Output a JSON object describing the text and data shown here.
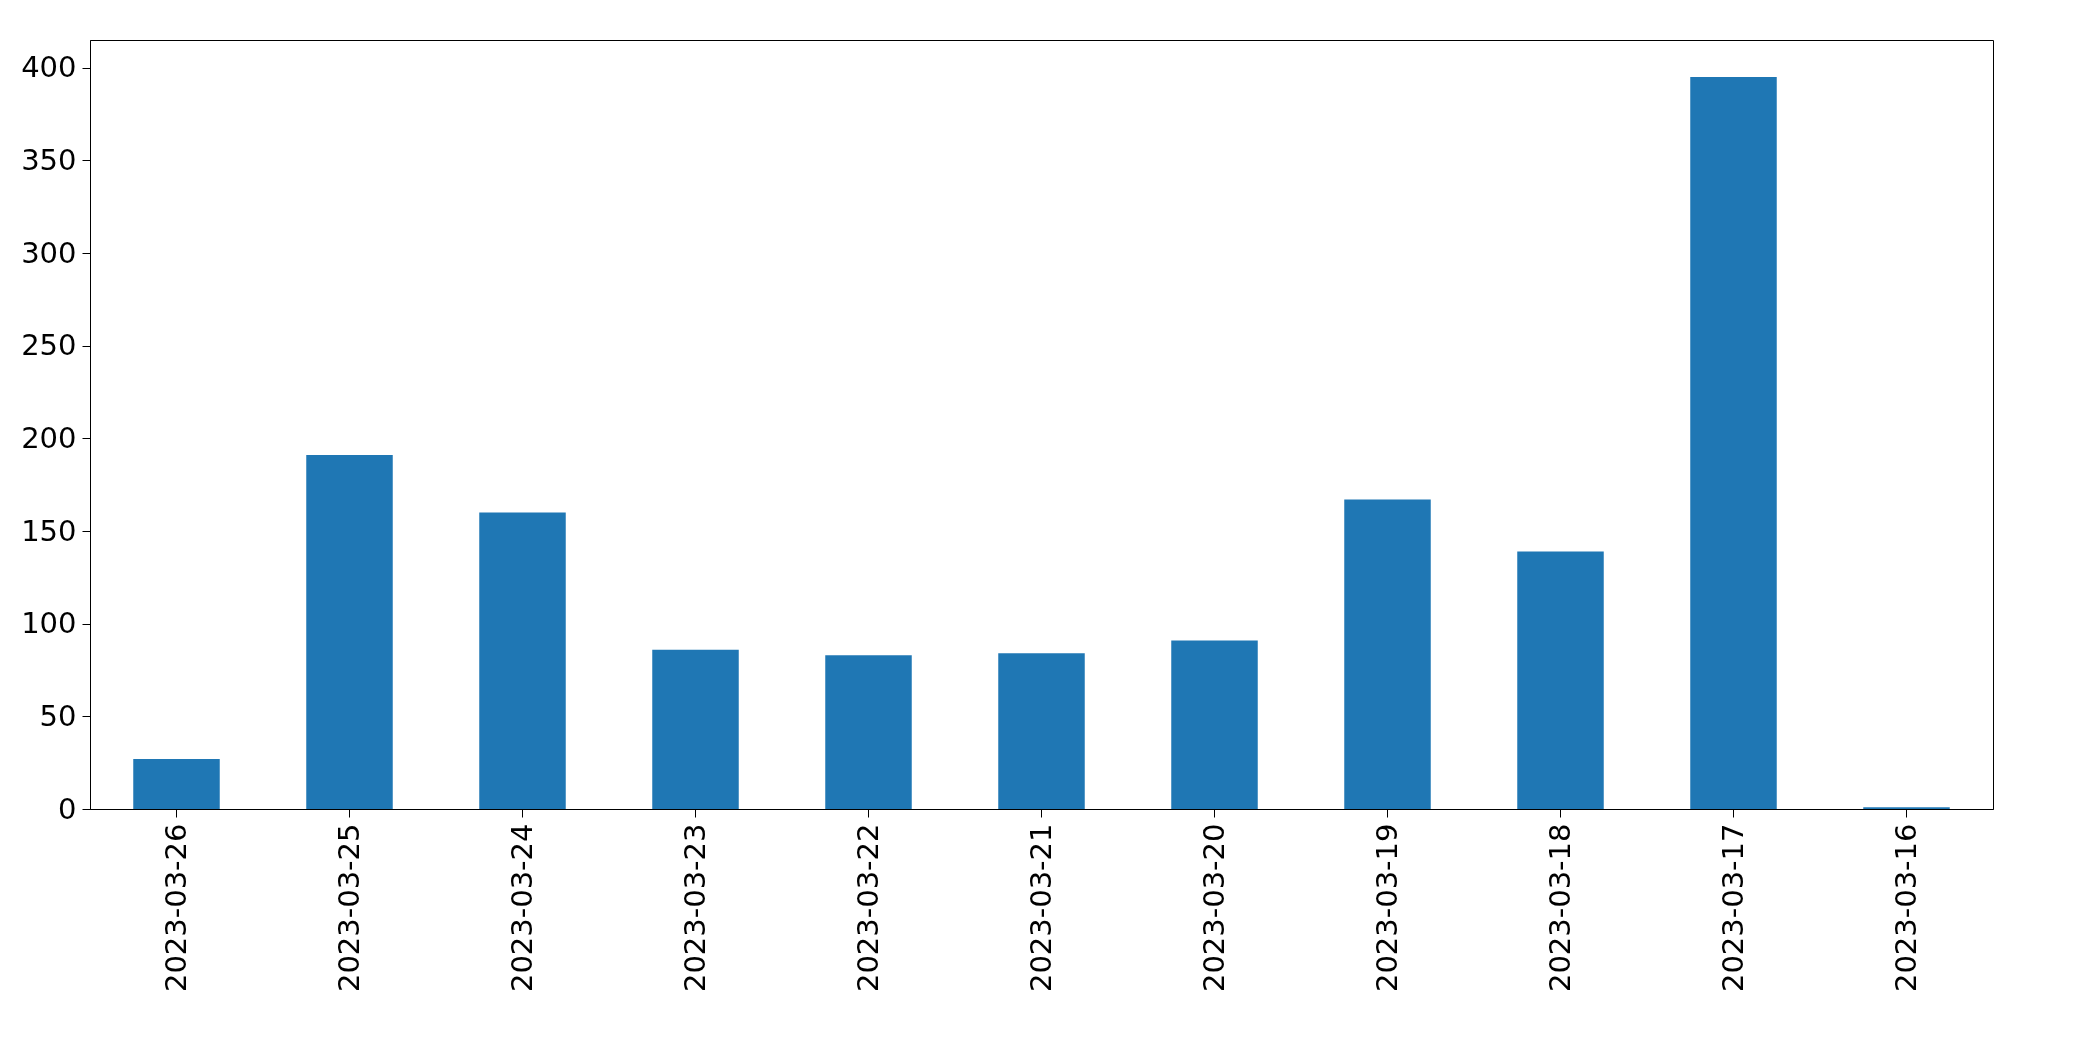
{
  "chart_data": {
    "type": "bar",
    "categories": [
      "2023-03-26",
      "2023-03-25",
      "2023-03-24",
      "2023-03-23",
      "2023-03-22",
      "2023-03-21",
      "2023-03-20",
      "2023-03-19",
      "2023-03-18",
      "2023-03-17",
      "2023-03-16"
    ],
    "values": [
      27,
      191,
      160,
      86,
      83,
      84,
      91,
      167,
      139,
      395,
      1
    ],
    "color": "#1f77b4",
    "ylim": [
      0,
      415
    ],
    "yticks": [
      0,
      50,
      100,
      150,
      200,
      250,
      300,
      350,
      400
    ],
    "grid": false
  }
}
